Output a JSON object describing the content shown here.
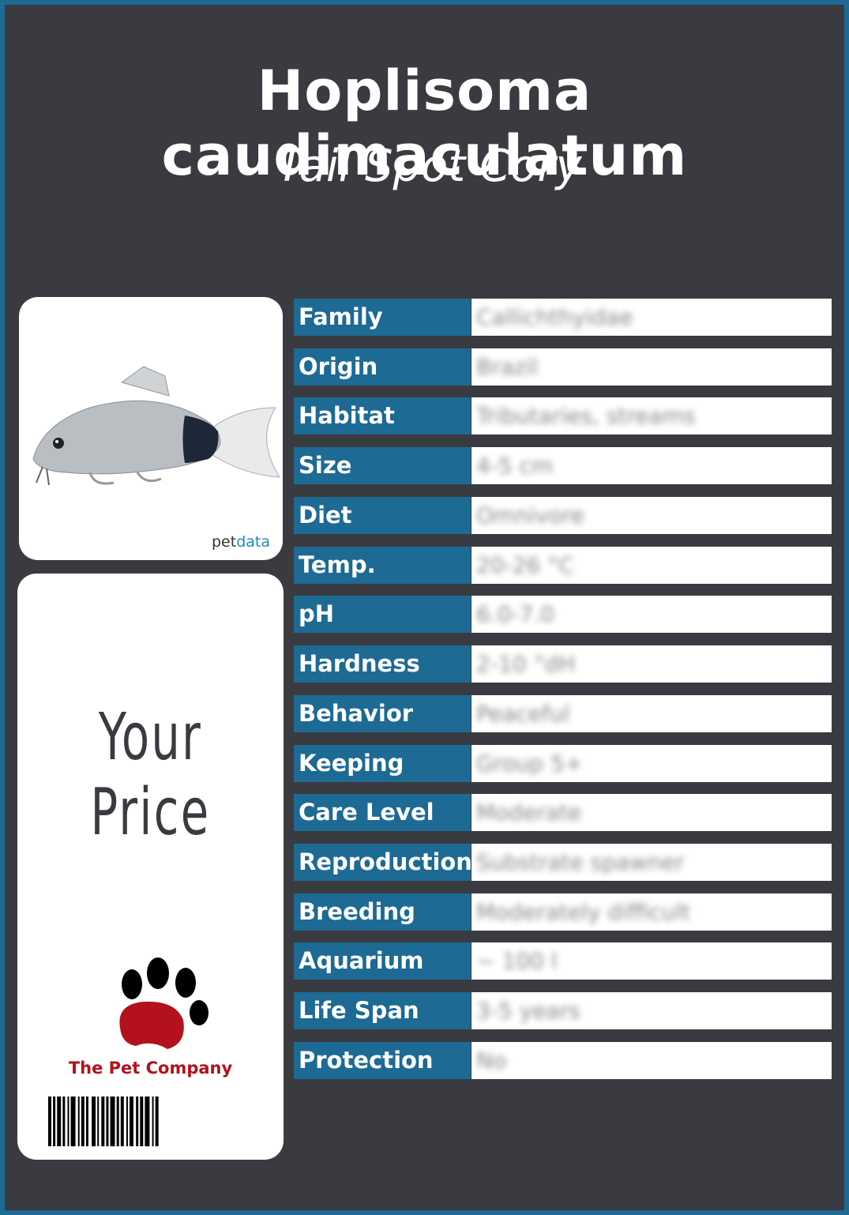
{
  "header": {
    "title": "Hoplisoma caudimaculatum",
    "subtitle": "Tail Spot Cory"
  },
  "logo": {
    "part1": "pet",
    "part2": "data"
  },
  "price_label": "Your Price",
  "company": "The Pet Company",
  "table": {
    "rows": [
      [
        "Family",
        "Callichthyidae"
      ],
      [
        "Origin",
        "Brazil"
      ],
      [
        "Habitat",
        "Tributaries, streams"
      ],
      [
        "Size",
        "4-5 cm"
      ],
      [
        "Diet",
        "Omnivore"
      ],
      [
        "Temp.",
        "20-26 °C"
      ],
      [
        "pH",
        "6.0-7.0"
      ],
      [
        "Hardness",
        "2-10 °dH"
      ],
      [
        "Behavior",
        "Peaceful"
      ],
      [
        "Keeping",
        "Group 5+"
      ],
      [
        "Care Level",
        "Moderate"
      ],
      [
        "Reproduction",
        "Substrate spawner"
      ],
      [
        "Breeding",
        "Moderately difficult"
      ],
      [
        "Aquarium",
        "~ 100 l"
      ],
      [
        "Life Span",
        "3-5 years"
      ],
      [
        "Protection",
        "No"
      ]
    ]
  }
}
